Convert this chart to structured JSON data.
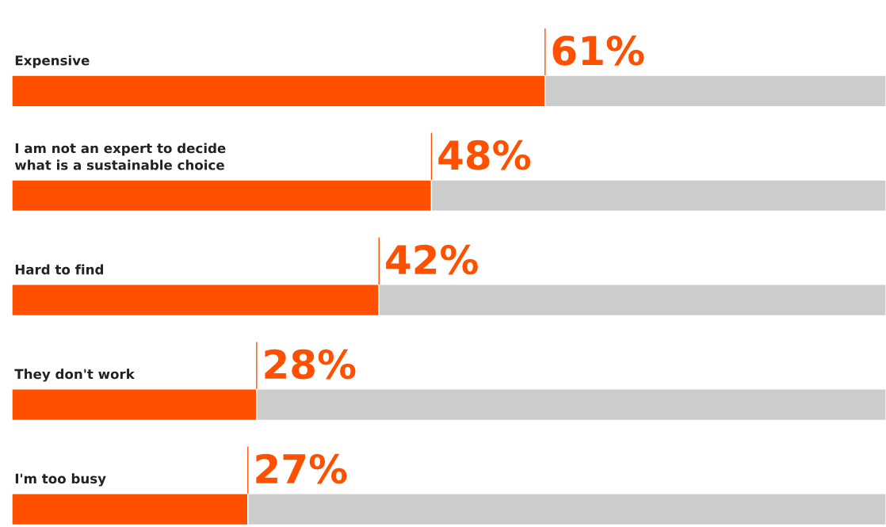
{
  "chart_data": {
    "type": "bar",
    "orientation": "horizontal",
    "stacked": true,
    "categories": [
      "Expensive",
      "I am not an expert to decide\nwhat is a sustainable choice",
      "Hard to find",
      "They don't work",
      "I'm too busy"
    ],
    "series": [
      {
        "color": "#ff5000",
        "values": [
          61,
          48,
          42,
          28,
          27
        ],
        "value_labels": [
          "61%",
          "48%",
          "42%",
          "28%",
          "27%"
        ]
      },
      {
        "color": "#cccccc",
        "values": [
          39,
          52,
          58,
          72,
          73
        ]
      }
    ],
    "xlim": [
      0,
      100
    ]
  }
}
